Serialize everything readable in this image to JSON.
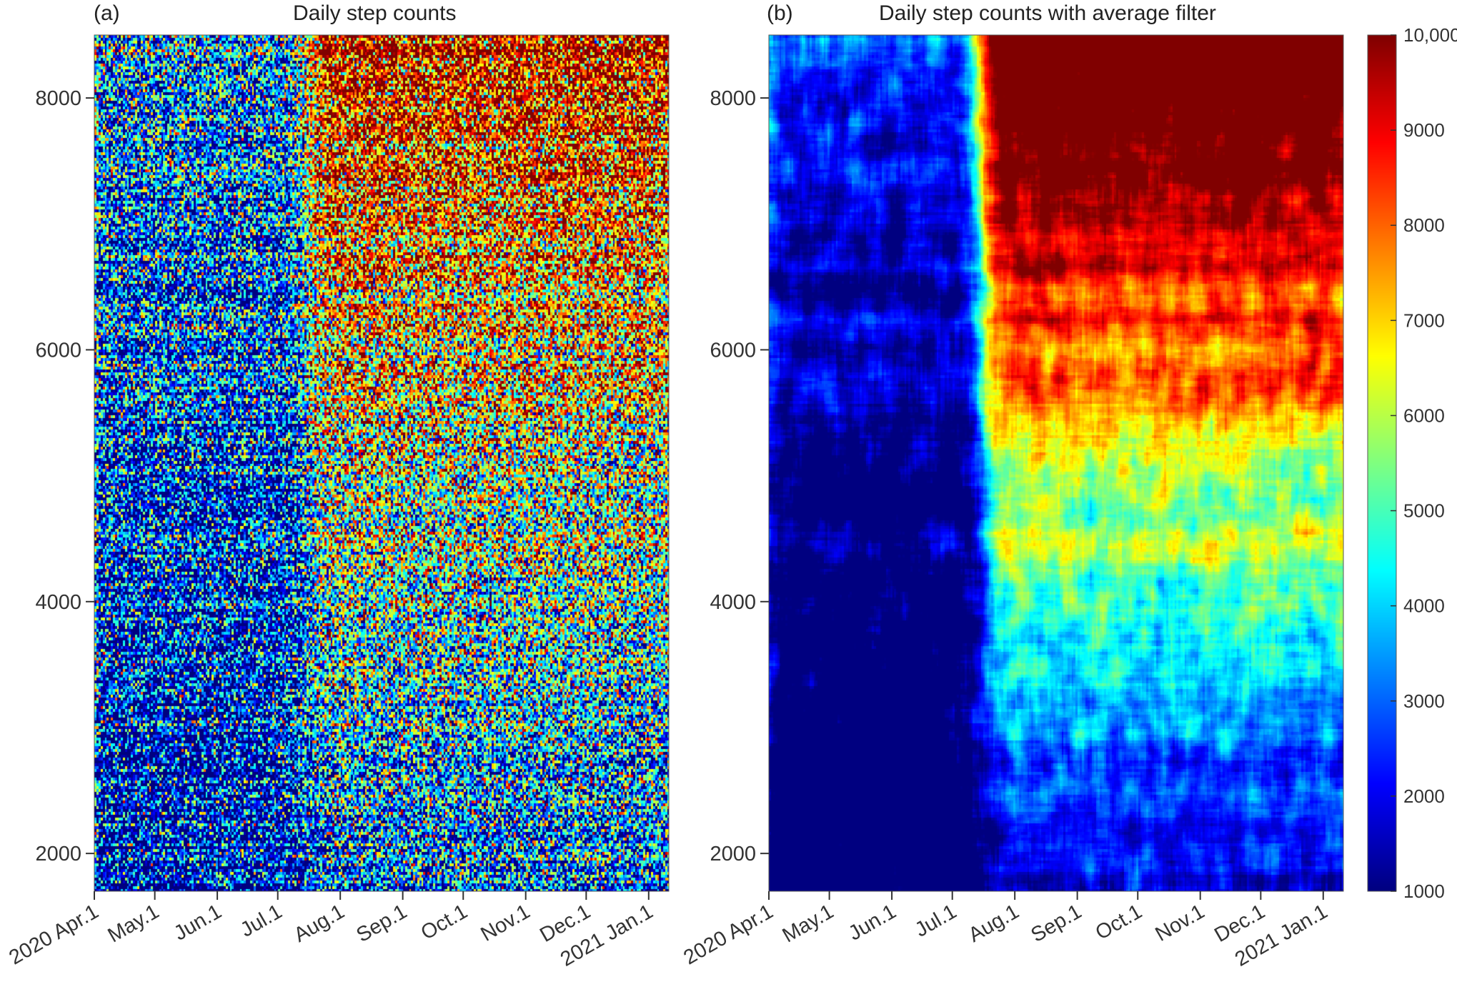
{
  "chart_data": [
    {
      "type": "heatmap",
      "panel_label": "(a)",
      "title": "Daily step counts",
      "xlabel": "",
      "ylabel": "",
      "x_ticks": [
        "2020 Apr.1",
        "May.1",
        "Jun.1",
        "Jul.1",
        "Aug.1",
        "Sep.1",
        "Oct.1",
        "Nov.1",
        "Dec.1",
        "2021 Jan.1"
      ],
      "x_range": [
        "2020-04-01",
        "2021-01-11"
      ],
      "y_ticks": [
        2000,
        4000,
        6000,
        8000
      ],
      "y_range": [
        1700,
        8500
      ],
      "value_range": [
        1000,
        10000
      ],
      "colormap": "jet",
      "smoothing": "none",
      "description_of_pattern": {
        "low_activity_period": [
          "2020-04-01",
          "2020-07-15"
        ],
        "higher_activity_period": [
          "2020-07-15",
          "2021-01-11"
        ],
        "activity_increases_with_user_index": true
      }
    },
    {
      "type": "heatmap",
      "panel_label": "(b)",
      "title": "Daily step counts with average filter",
      "xlabel": "",
      "ylabel": "",
      "x_ticks": [
        "2020 Apr.1",
        "May.1",
        "Jun.1",
        "Jul.1",
        "Aug.1",
        "Sep.1",
        "Oct.1",
        "Nov.1",
        "Dec.1",
        "2021 Jan.1"
      ],
      "x_range": [
        "2020-04-01",
        "2021-01-11"
      ],
      "y_ticks": [
        2000,
        4000,
        6000,
        8000
      ],
      "y_range": [
        1700,
        8500
      ],
      "value_range": [
        1000,
        10000
      ],
      "colormap": "jet",
      "smoothing": "average filter",
      "colorbar": {
        "ticks": [
          1000,
          2000,
          3000,
          4000,
          5000,
          6000,
          7000,
          8000,
          9000,
          10000
        ],
        "tick_labels": [
          "1000",
          "2000",
          "3000",
          "4000",
          "5000",
          "6000",
          "7000",
          "8000",
          "9000",
          "10,000"
        ]
      }
    }
  ]
}
